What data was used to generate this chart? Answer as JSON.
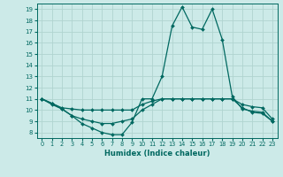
{
  "xlabel": "Humidex (Indice chaleur)",
  "bg_color": "#cceae8",
  "grid_color": "#b0d4d0",
  "line_color": "#006860",
  "xlim": [
    -0.5,
    23.5
  ],
  "ylim": [
    7.5,
    19.5
  ],
  "yticks": [
    8,
    9,
    10,
    11,
    12,
    13,
    14,
    15,
    16,
    17,
    18,
    19
  ],
  "xticks": [
    0,
    1,
    2,
    3,
    4,
    5,
    6,
    7,
    8,
    9,
    10,
    11,
    12,
    13,
    14,
    15,
    16,
    17,
    18,
    19,
    20,
    21,
    22,
    23
  ],
  "series": [
    {
      "x": [
        0,
        1,
        2,
        3,
        4,
        5,
        6,
        7,
        8,
        9,
        10,
        11,
        12,
        13,
        14,
        15,
        16,
        17,
        18,
        19,
        20,
        21,
        22,
        23
      ],
      "y": [
        11.0,
        10.5,
        10.1,
        9.5,
        8.8,
        8.4,
        8.0,
        7.8,
        7.8,
        8.9,
        11.0,
        11.0,
        13.0,
        17.5,
        19.2,
        17.4,
        17.2,
        19.0,
        16.3,
        11.2,
        10.1,
        9.9,
        9.8,
        9.0
      ]
    },
    {
      "x": [
        0,
        1,
        2,
        3,
        4,
        5,
        6,
        7,
        8,
        9,
        10,
        11,
        12,
        13,
        14,
        15,
        16,
        17,
        18,
        19,
        20,
        21,
        22,
        23
      ],
      "y": [
        11.0,
        10.6,
        10.2,
        10.1,
        10.0,
        10.0,
        10.0,
        10.0,
        10.0,
        10.0,
        10.5,
        10.8,
        11.0,
        11.0,
        11.0,
        11.0,
        11.0,
        11.0,
        11.0,
        11.0,
        10.5,
        10.3,
        10.2,
        9.2
      ]
    },
    {
      "x": [
        0,
        1,
        2,
        3,
        4,
        5,
        6,
        7,
        8,
        9,
        10,
        11,
        12,
        13,
        14,
        15,
        16,
        17,
        18,
        19,
        20,
        21,
        22,
        23
      ],
      "y": [
        11.0,
        10.6,
        10.1,
        9.5,
        9.2,
        9.0,
        8.8,
        8.8,
        9.0,
        9.2,
        10.0,
        10.5,
        11.0,
        11.0,
        11.0,
        11.0,
        11.0,
        11.0,
        11.0,
        11.0,
        10.2,
        9.8,
        9.7,
        9.0
      ]
    }
  ]
}
